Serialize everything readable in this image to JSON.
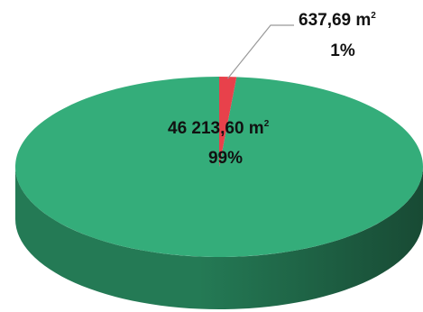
{
  "chart_data": {
    "type": "pie",
    "style": "3d",
    "title": "",
    "legend": "none",
    "slices": [
      {
        "value": 46213.6,
        "value_label": "46 213,60 m",
        "unit_sup": "2",
        "percent_label": "99%",
        "color": "#34ad7a",
        "side_color": "#247a55",
        "side_dark": "#184a34"
      },
      {
        "value": 637.69,
        "value_label": "637,69 m",
        "unit_sup": "2",
        "percent_label": "1%",
        "color": "#e8414b",
        "side_color": "#a82e35",
        "side_dark": "#6e1e22"
      }
    ],
    "leader_line_color": "#999999"
  }
}
